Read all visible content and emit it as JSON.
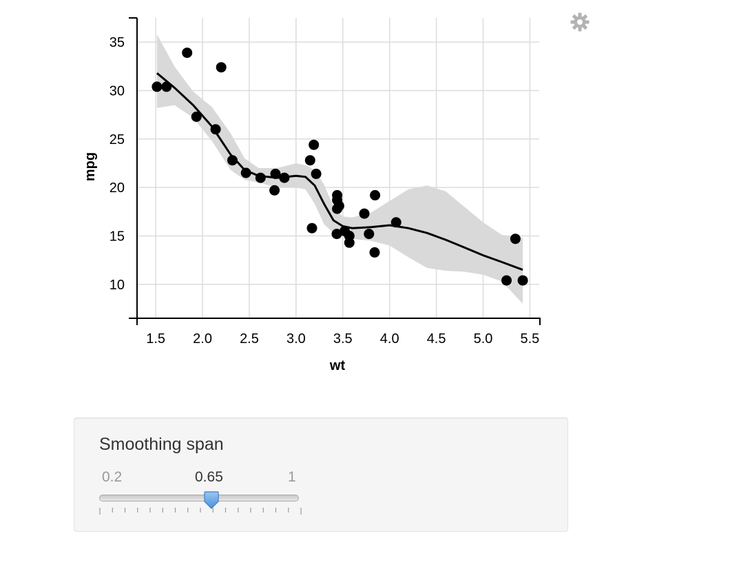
{
  "chart_data": {
    "type": "scatter",
    "xlabel": "wt",
    "ylabel": "mpg",
    "xlim": [
      1.3,
      5.6
    ],
    "ylim": [
      6.5,
      37.5
    ],
    "xticks": [
      "1.5",
      "2.0",
      "2.5",
      "3.0",
      "3.5",
      "4.0",
      "4.5",
      "5.0",
      "5.5"
    ],
    "yticks": [
      "10",
      "15",
      "20",
      "25",
      "30",
      "35"
    ],
    "xtick_values": [
      1.5,
      2.0,
      2.5,
      3.0,
      3.5,
      4.0,
      4.5,
      5.0,
      5.5
    ],
    "ytick_values": [
      10,
      15,
      20,
      25,
      30,
      35
    ],
    "grid": true,
    "points": [
      [
        2.62,
        21.0
      ],
      [
        2.875,
        21.0
      ],
      [
        2.32,
        22.8
      ],
      [
        3.215,
        21.4
      ],
      [
        3.44,
        18.7
      ],
      [
        3.46,
        18.1
      ],
      [
        3.57,
        14.3
      ],
      [
        3.19,
        24.4
      ],
      [
        3.15,
        22.8
      ],
      [
        3.44,
        19.2
      ],
      [
        3.44,
        17.8
      ],
      [
        4.07,
        16.4
      ],
      [
        3.73,
        17.3
      ],
      [
        3.78,
        15.2
      ],
      [
        5.25,
        10.4
      ],
      [
        5.424,
        10.4
      ],
      [
        5.345,
        14.7
      ],
      [
        2.2,
        32.4
      ],
      [
        1.615,
        30.4
      ],
      [
        1.835,
        33.9
      ],
      [
        2.465,
        21.5
      ],
      [
        3.52,
        15.5
      ],
      [
        3.435,
        15.2
      ],
      [
        3.84,
        13.3
      ],
      [
        3.845,
        19.2
      ],
      [
        1.935,
        27.3
      ],
      [
        2.14,
        26.0
      ],
      [
        1.513,
        30.4
      ],
      [
        3.17,
        15.8
      ],
      [
        2.77,
        19.7
      ],
      [
        3.57,
        15.0
      ],
      [
        2.78,
        21.4
      ]
    ],
    "smooth": {
      "x": [
        1.513,
        1.7,
        1.9,
        2.1,
        2.3,
        2.45,
        2.6,
        2.8,
        3.0,
        3.1,
        3.2,
        3.3,
        3.4,
        3.5,
        3.6,
        3.8,
        4.0,
        4.2,
        4.4,
        4.6,
        4.8,
        5.0,
        5.2,
        5.424
      ],
      "y": [
        31.8,
        30.3,
        28.5,
        26.3,
        23.4,
        21.8,
        21.2,
        21.0,
        21.2,
        21.1,
        20.2,
        18.3,
        16.6,
        16.0,
        15.8,
        15.9,
        16.1,
        15.8,
        15.3,
        14.6,
        13.8,
        13.0,
        12.3,
        11.5
      ],
      "lower": [
        28.2,
        28.5,
        27.2,
        24.8,
        21.8,
        20.8,
        20.5,
        20.0,
        20.0,
        19.8,
        18.3,
        16.2,
        15.3,
        14.9,
        14.7,
        14.5,
        14.0,
        12.8,
        11.7,
        11.4,
        11.3,
        11.0,
        10.3,
        8.0
      ],
      "upper": [
        35.8,
        32.5,
        29.9,
        28.3,
        25.6,
        23.0,
        22.0,
        22.0,
        22.5,
        22.3,
        21.8,
        20.3,
        18.0,
        17.0,
        16.9,
        17.4,
        18.6,
        19.8,
        20.2,
        19.6,
        18.0,
        16.4,
        15.1,
        14.8
      ]
    },
    "colors": {
      "points": "#000000",
      "line": "#000000",
      "ribbon": "#d9d9d9",
      "grid": "#dcdcdc"
    }
  },
  "settings": {
    "icon": "gear-icon",
    "color": "#b3b3b3"
  },
  "slider": {
    "label": "Smoothing span",
    "min": 0.2,
    "max": 1,
    "value": 0.65,
    "min_label": "0.2",
    "max_label": "1",
    "value_label": "0.65",
    "tick_count": 17,
    "handle_color": "#5b9ee6"
  }
}
